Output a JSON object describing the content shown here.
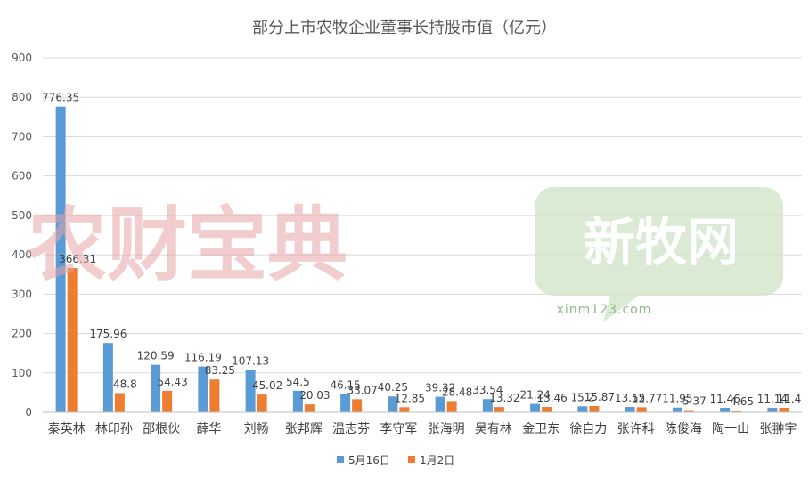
{
  "chart_data": {
    "type": "bar",
    "title": "部分上市农牧企业董事长持股市值（亿元）",
    "categories": [
      "秦英林",
      "林印孙",
      "邵根伙",
      "薛华",
      "刘畅",
      "张邦辉",
      "温志芬",
      "李守军",
      "张海明",
      "吴有林",
      "金卫东",
      "徐自力",
      "张许科",
      "陈俊海",
      "陶一山",
      "张翀宇"
    ],
    "series": [
      {
        "name": "5月16日",
        "color": "#5b9bd5",
        "values": [
          776.35,
          175.96,
          120.59,
          116.19,
          107.13,
          54.5,
          46.15,
          40.25,
          39.32,
          33.54,
          21.24,
          15.2,
          13.55,
          11.95,
          11.46,
          11.14
        ],
        "labels": [
          "776.35",
          "175.96",
          "120.59",
          "116.19",
          "107.13",
          "54.5",
          "46.15",
          "40.25",
          "39.32",
          "33.54",
          "21.24",
          "15.2",
          "13.55",
          "11.95",
          "11.46",
          "11.14"
        ]
      },
      {
        "name": "1月2日",
        "color": "#ed7d31",
        "values": [
          366.31,
          48.8,
          54.43,
          83.25,
          45.02,
          20.03,
          33.07,
          12.85,
          28.48,
          13.32,
          13.46,
          15.87,
          12.77,
          5.37,
          4.65,
          11.4
        ],
        "labels": [
          "366.31",
          "48.8",
          "54.43",
          "83.25",
          "45.02",
          "20.03",
          "33.07",
          "12.85",
          "28.48",
          "13.32",
          "13.46",
          "15.87",
          "12.77",
          "5.37",
          "4.65",
          "11.4"
        ]
      }
    ],
    "ylim": [
      0,
      900
    ],
    "yticks": [
      "0",
      "100",
      "200",
      "300",
      "400",
      "500",
      "600",
      "700",
      "800",
      "900"
    ],
    "grid": true,
    "legend_position": "bottom"
  },
  "watermarks": {
    "left_text": "农财宝典",
    "right_logo_text": "新牧网",
    "right_url": "xinm123.com"
  }
}
